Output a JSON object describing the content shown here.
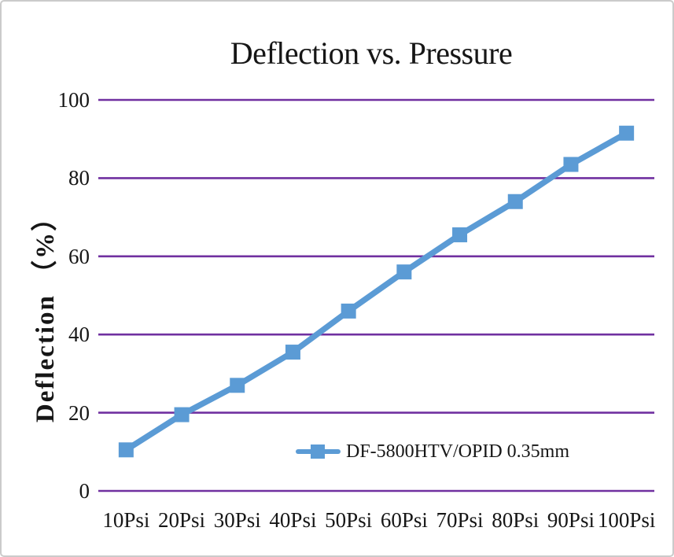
{
  "frame": {
    "background": "#ffffff",
    "border_color": "#cbcbcb",
    "text_color": "#161616"
  },
  "chart_data": {
    "type": "line",
    "title": "Deflection vs. Pressure",
    "xlabel": "",
    "ylabel": "Deflection （%）",
    "categories": [
      "10Psi",
      "20Psi",
      "30Psi",
      "40Psi",
      "50Psi",
      "60Psi",
      "70Psi",
      "80Psi",
      "90Psi",
      "100Psi"
    ],
    "series": [
      {
        "name": "DF-5800HTV/OPID 0.35mm",
        "values": [
          10.5,
          19.5,
          27,
          35.5,
          46,
          56,
          65.5,
          74,
          83.5,
          91.5
        ],
        "color": "#5B9BD5",
        "marker": "square"
      }
    ],
    "ylim": [
      0,
      100
    ],
    "yticks": [
      0,
      20,
      40,
      60,
      80,
      100
    ],
    "grid": "horizontal",
    "gridline_color": "#7030A0",
    "legend_position": "inside-bottom-center"
  }
}
